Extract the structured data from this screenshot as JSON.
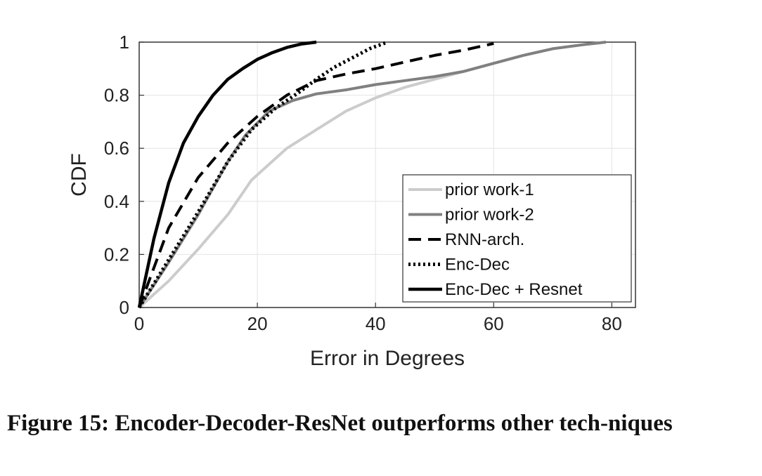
{
  "caption": "Figure 15: Encoder-Decoder-ResNet outperforms other tech-niques",
  "chart_data": {
    "type": "line",
    "xlabel": "Error in Degrees",
    "ylabel": "CDF",
    "xlim": [
      0,
      84
    ],
    "ylim": [
      0,
      1
    ],
    "xticks": [
      0,
      20,
      40,
      60,
      80
    ],
    "yticks": [
      0,
      0.2,
      0.4,
      0.6,
      0.8,
      1
    ],
    "xtick_labels": [
      "0",
      "20",
      "40",
      "60",
      "80"
    ],
    "ytick_labels": [
      "0",
      "0.2",
      "0.4",
      "0.6",
      "0.8",
      "1"
    ],
    "grid": true,
    "legend_position": "bottom-right",
    "series": [
      {
        "name": "prior work-1",
        "color": "#cccccc",
        "style": "solid",
        "x": [
          0,
          5,
          10,
          15,
          19,
          25,
          30,
          35,
          40,
          45,
          50,
          55,
          60,
          65,
          70,
          75,
          79
        ],
        "y": [
          0,
          0.1,
          0.22,
          0.35,
          0.48,
          0.6,
          0.67,
          0.74,
          0.79,
          0.83,
          0.86,
          0.89,
          0.92,
          0.95,
          0.975,
          0.99,
          1.0
        ]
      },
      {
        "name": "prior work-2",
        "color": "#808080",
        "style": "solid",
        "x": [
          0,
          5,
          10,
          15,
          18,
          22,
          26,
          30,
          35,
          40,
          45,
          50,
          55,
          60,
          65,
          70,
          75,
          79
        ],
        "y": [
          0,
          0.17,
          0.35,
          0.55,
          0.65,
          0.74,
          0.78,
          0.805,
          0.82,
          0.84,
          0.855,
          0.87,
          0.89,
          0.92,
          0.95,
          0.975,
          0.99,
          1.0
        ]
      },
      {
        "name": "RNN-arch.",
        "color": "#000000",
        "style": "dashed",
        "x": [
          0,
          5,
          10,
          15,
          20,
          25,
          30,
          35,
          40,
          45,
          50,
          55,
          60
        ],
        "y": [
          0,
          0.3,
          0.49,
          0.62,
          0.72,
          0.8,
          0.855,
          0.88,
          0.9,
          0.925,
          0.95,
          0.97,
          0.995
        ]
      },
      {
        "name": "Enc-Dec",
        "color": "#000000",
        "style": "dotted",
        "x": [
          0,
          5,
          10,
          15,
          19,
          23,
          27,
          30,
          33,
          36,
          39,
          42
        ],
        "y": [
          0,
          0.18,
          0.36,
          0.55,
          0.67,
          0.75,
          0.81,
          0.86,
          0.905,
          0.94,
          0.975,
          1.0
        ]
      },
      {
        "name": "Enc-Dec + Resnet",
        "color": "#000000",
        "style": "solid-bold",
        "x": [
          0,
          2.5,
          5,
          7.5,
          10,
          12.5,
          15,
          17.5,
          20,
          22.5,
          25,
          27.5,
          30
        ],
        "y": [
          0,
          0.26,
          0.47,
          0.62,
          0.72,
          0.8,
          0.86,
          0.9,
          0.935,
          0.96,
          0.98,
          0.993,
          1.0
        ]
      }
    ]
  }
}
